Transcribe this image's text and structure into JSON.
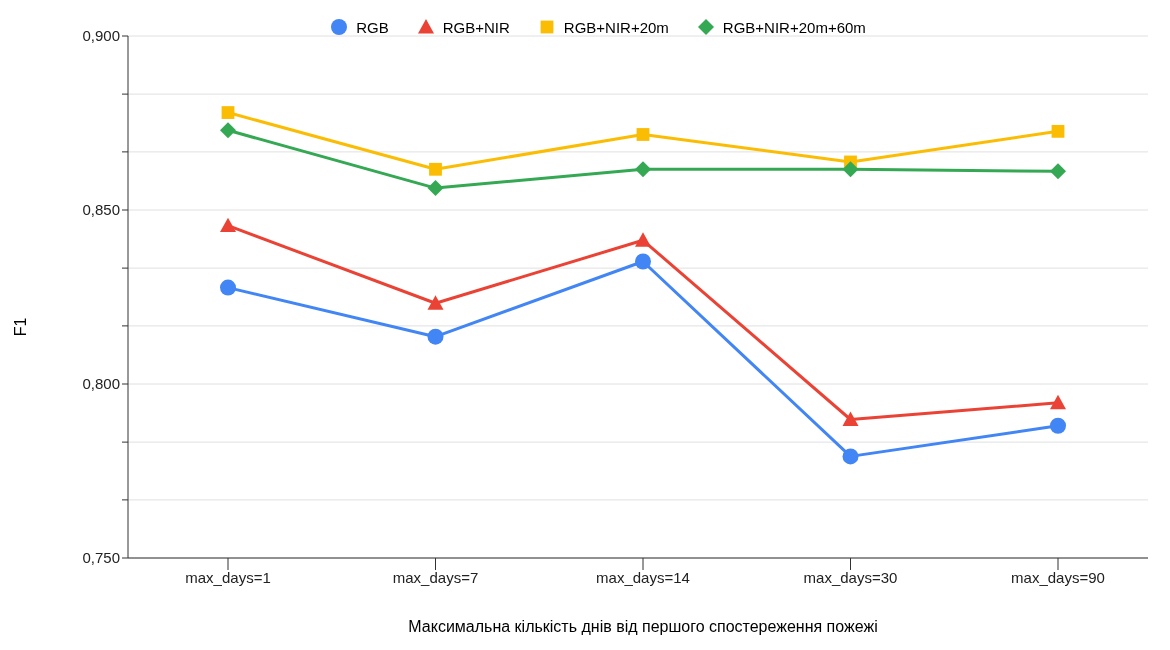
{
  "chart_data": {
    "type": "line",
    "xlabel": "Максимальна кількість днів від першого спостереження пожежі",
    "ylabel": "F1",
    "categories": [
      "max_days=1",
      "max_days=7",
      "max_days=14",
      "max_days=30",
      "max_days=90"
    ],
    "series": [
      {
        "name": "RGB",
        "color": "#4285f4",
        "marker": "circle",
        "values": [
          0.8277,
          0.8136,
          0.8352,
          0.7792,
          0.788
        ]
      },
      {
        "name": "RGB+NIR",
        "color": "#ea4335",
        "marker": "triangle",
        "values": [
          0.8455,
          0.8232,
          0.8413,
          0.7898,
          0.7946
        ]
      },
      {
        "name": "RGB+NIR+20m",
        "color": "#fbbc04",
        "marker": "square",
        "values": [
          0.878,
          0.8617,
          0.8717,
          0.8638,
          0.8726
        ]
      },
      {
        "name": "RGB+NIR+20m+60m",
        "color": "#34a853",
        "marker": "diamond",
        "values": [
          0.8729,
          0.8563,
          0.8617,
          0.8617,
          0.8611
        ]
      }
    ],
    "ylim": [
      0.75,
      0.9
    ],
    "yticks": [
      {
        "value": 0.75,
        "label": "0,750"
      },
      {
        "value": 0.7667,
        "label": null
      },
      {
        "value": 0.7833,
        "label": null
      },
      {
        "value": 0.8,
        "label": "0,800"
      },
      {
        "value": 0.8167,
        "label": null
      },
      {
        "value": 0.8333,
        "label": null
      },
      {
        "value": 0.85,
        "label": "0,850"
      },
      {
        "value": 0.8667,
        "label": null
      },
      {
        "value": 0.8833,
        "label": null
      },
      {
        "value": 0.9,
        "label": "0,900"
      }
    ],
    "grid": "y",
    "legend": "top",
    "line_style": "solid"
  }
}
